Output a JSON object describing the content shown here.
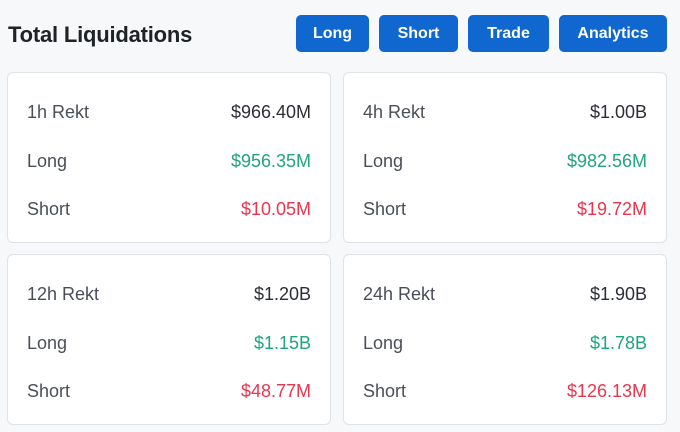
{
  "header": {
    "title": "Total Liquidations",
    "buttons": {
      "long": "Long",
      "short": "Short",
      "trade": "Trade",
      "analytics": "Analytics"
    }
  },
  "colors": {
    "accent": "#1067d0",
    "long": "#20a47e",
    "short": "#e8364f"
  },
  "cards": [
    {
      "title": "1h Rekt",
      "total": "$966.40M",
      "long_label": "Long",
      "long_value": "$956.35M",
      "short_label": "Short",
      "short_value": "$10.05M"
    },
    {
      "title": "4h Rekt",
      "total": "$1.00B",
      "long_label": "Long",
      "long_value": "$982.56M",
      "short_label": "Short",
      "short_value": "$19.72M"
    },
    {
      "title": "12h Rekt",
      "total": "$1.20B",
      "long_label": "Long",
      "long_value": "$1.15B",
      "short_label": "Short",
      "short_value": "$48.77M"
    },
    {
      "title": "24h Rekt",
      "total": "$1.90B",
      "long_label": "Long",
      "long_value": "$1.78B",
      "short_label": "Short",
      "short_value": "$126.13M"
    }
  ]
}
